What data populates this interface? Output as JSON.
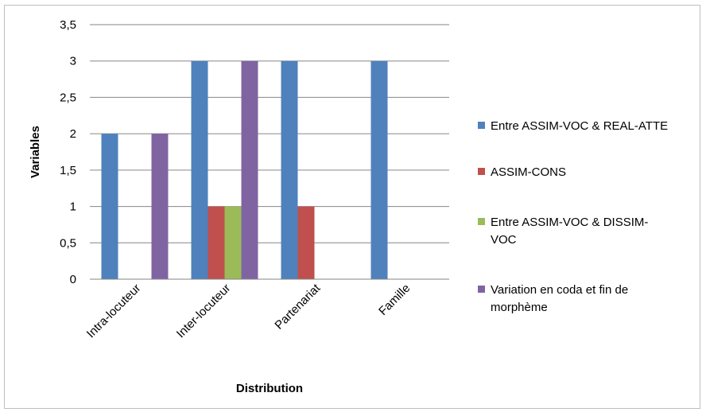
{
  "chart_data": {
    "type": "bar",
    "categories": [
      "Intra-locuteur",
      "Inter-locuteur",
      "Partenariat",
      "Famille"
    ],
    "series": [
      {
        "name": "Entre ASSIM-VOC & REAL-ATTE",
        "color": "#4f81bd",
        "values": [
          2,
          3,
          3,
          3
        ]
      },
      {
        "name": "ASSIM-CONS",
        "color": "#c0504d",
        "values": [
          0,
          1,
          1,
          0
        ]
      },
      {
        "name": "Entre ASSIM-VOC & DISSIM-VOC",
        "color": "#9bbb59",
        "values": [
          0,
          1,
          0,
          0
        ]
      },
      {
        "name": "Variation en coda et fin de morphème",
        "color": "#8064a2",
        "values": [
          2,
          3,
          0,
          0
        ]
      }
    ],
    "legend_lines": [
      [
        "Entre ASSIM-VOC & REAL-ATTE"
      ],
      [
        "ASSIM-CONS"
      ],
      [
        "Entre ASSIM-VOC & DISSIM-",
        "VOC"
      ],
      [
        "Variation en coda et fin de",
        "morphème"
      ]
    ],
    "yticks": [
      "0",
      "0,5",
      "1",
      "1,5",
      "2",
      "2,5",
      "3",
      "3,5"
    ],
    "ylim": [
      0,
      3.5
    ],
    "xlabel": "Distribution",
    "ylabel": "Variables",
    "grid": true,
    "legend_position": "right"
  }
}
